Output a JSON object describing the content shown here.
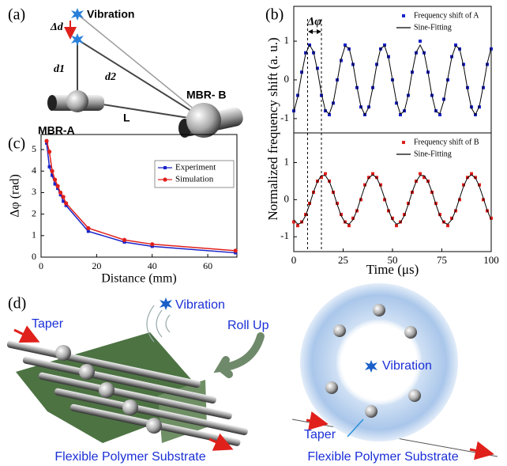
{
  "panel_labels": [
    "(a)",
    "(b)",
    "(c)",
    "(d)"
  ],
  "diagram_a": {
    "vibration": "Vibration",
    "delta_d": "Δd",
    "d1": "d1",
    "d2": "d2",
    "mbr_b": "MBR- B",
    "mbr_a": "MBR-A",
    "l": "L"
  },
  "diagram_d": {
    "left": {
      "taper": "Taper",
      "vibration": "Vibration",
      "roll_up": "Roll Up",
      "substrate": "Flexible Polymer Substrate"
    },
    "right": {
      "vibration": "Vibration",
      "taper": "Taper",
      "substrate": "Flexible Polymer Substrate"
    }
  },
  "chart_data": [
    {
      "type": "scatter",
      "ylabel": "Normalized frequency shift (a. u.)",
      "annotation": "Δφ",
      "x": [
        0,
        2,
        4,
        6,
        8,
        10,
        12,
        14,
        16,
        18,
        20,
        22,
        24,
        26,
        28,
        30,
        32,
        34,
        36,
        38,
        40,
        42,
        44,
        46,
        48,
        50,
        52,
        54,
        56,
        58,
        60,
        62,
        64,
        66,
        68,
        70,
        72,
        74,
        76,
        78,
        80,
        82,
        84,
        86,
        88,
        90,
        92,
        94,
        96,
        98,
        100
      ],
      "xlim": [
        0,
        100
      ],
      "ylim": [
        -1.37,
        1.9
      ],
      "yticks": [
        -1,
        0,
        1
      ],
      "legend": "upper right",
      "series": [
        {
          "name": "Frequency shift of A",
          "color": "#1a23c8",
          "mode": "markers",
          "marker": "square",
          "values": [
            -0.8,
            -0.4,
            0.2,
            0.7,
            0.9,
            0.7,
            0.3,
            -0.4,
            -0.8,
            -0.9,
            -0.6,
            0.0,
            0.5,
            0.9,
            0.8,
            0.4,
            -0.2,
            -0.7,
            -0.9,
            -0.7,
            -0.2,
            0.4,
            0.8,
            0.9,
            0.6,
            0.0,
            -0.6,
            -0.9,
            -0.8,
            -0.4,
            0.2,
            0.7,
            1.0,
            0.7,
            0.2,
            -0.4,
            -0.8,
            -0.9,
            -0.5,
            0.0,
            0.6,
            0.9,
            0.8,
            0.4,
            -0.2,
            -0.7,
            -0.9,
            -0.7,
            -0.2,
            0.4,
            0.8
          ]
        },
        {
          "name": "Sine-Fitting",
          "color": "#000000",
          "mode": "line",
          "values": [
            -0.83,
            -0.44,
            0.15,
            0.67,
            0.9,
            0.73,
            0.24,
            -0.35,
            -0.79,
            -0.88,
            -0.59,
            -0.03,
            0.54,
            0.87,
            0.82,
            0.41,
            -0.18,
            -0.69,
            -0.9,
            -0.71,
            -0.21,
            0.38,
            0.81,
            0.88,
            0.57,
            0.0,
            -0.56,
            -0.88,
            -0.81,
            -0.39,
            0.21,
            0.71,
            0.9,
            0.7,
            0.19,
            -0.41,
            -0.82,
            -0.87,
            -0.54,
            0.03,
            0.58,
            0.88,
            0.8,
            0.36,
            -0.23,
            -0.73,
            -0.9,
            -0.68,
            -0.16,
            0.43,
            0.83
          ]
        }
      ]
    },
    {
      "type": "scatter",
      "xlabel": "Time (μs)",
      "x": [
        0,
        2,
        4,
        6,
        8,
        10,
        12,
        14,
        16,
        18,
        20,
        22,
        24,
        26,
        28,
        30,
        32,
        34,
        36,
        38,
        40,
        42,
        44,
        46,
        48,
        50,
        52,
        54,
        56,
        58,
        60,
        62,
        64,
        66,
        68,
        70,
        72,
        74,
        76,
        78,
        80,
        82,
        84,
        86,
        88,
        90,
        92,
        94,
        96,
        98,
        100
      ],
      "xlim": [
        0,
        100
      ],
      "xticks": [
        0,
        25,
        50,
        75,
        100
      ],
      "ylim": [
        -1.4,
        1.8
      ],
      "yticks": [
        -1,
        0,
        1
      ],
      "legend": "upper right",
      "series": [
        {
          "name": "Frequency shift of B",
          "color": "#e0201b",
          "mode": "markers",
          "marker": "square",
          "values": [
            -0.6,
            -0.7,
            -0.6,
            -0.4,
            -0.1,
            0.2,
            0.5,
            0.6,
            0.7,
            0.5,
            0.2,
            -0.1,
            -0.4,
            -0.6,
            -0.7,
            -0.5,
            -0.3,
            0.0,
            0.4,
            0.6,
            0.7,
            0.6,
            0.4,
            0.0,
            -0.3,
            -0.5,
            -0.7,
            -0.6,
            -0.4,
            -0.1,
            0.2,
            0.5,
            0.7,
            0.6,
            0.5,
            0.2,
            -0.1,
            -0.4,
            -0.6,
            -0.7,
            -0.5,
            -0.3,
            0.0,
            0.4,
            0.6,
            0.7,
            0.6,
            0.4,
            0.0,
            -0.3,
            -0.5
          ]
        },
        {
          "name": "Sine-Fitting",
          "color": "#000000",
          "mode": "line",
          "values": [
            -0.54,
            -0.66,
            -0.62,
            -0.43,
            -0.13,
            0.21,
            0.49,
            0.65,
            0.65,
            0.49,
            0.21,
            -0.13,
            -0.43,
            -0.62,
            -0.66,
            -0.54,
            -0.29,
            0.04,
            0.36,
            0.59,
            0.67,
            0.59,
            0.36,
            0.04,
            -0.29,
            -0.54,
            -0.66,
            -0.62,
            -0.43,
            -0.13,
            0.21,
            0.49,
            0.65,
            0.65,
            0.49,
            0.21,
            -0.13,
            -0.43,
            -0.62,
            -0.66,
            -0.54,
            -0.29,
            0.04,
            0.36,
            0.59,
            0.67,
            0.59,
            0.36,
            0.04,
            -0.29,
            -0.54
          ]
        }
      ]
    },
    {
      "type": "line",
      "xlabel": "Distance (mm)",
      "ylabel": "Δφ (rad)",
      "x": [
        2,
        3,
        4,
        5,
        6,
        7,
        8,
        9,
        17,
        30,
        40,
        70
      ],
      "xlim": [
        0,
        70.5
      ],
      "xticks": [
        0,
        20,
        40,
        60
      ],
      "ylim": [
        0,
        5.7
      ],
      "yticks": [
        0,
        1,
        2,
        3,
        4,
        5
      ],
      "legend": "upper right",
      "legend_frame": true,
      "series": [
        {
          "name": "Experiment",
          "color": "#1a23c8",
          "marker": "square",
          "values": [
            5.3,
            4.2,
            3.8,
            3.4,
            3.2,
            2.9,
            2.6,
            2.4,
            1.2,
            0.7,
            0.5,
            0.2
          ]
        },
        {
          "name": "Simulation",
          "color": "#e0201b",
          "marker": "circle",
          "values": [
            5.4,
            4.9,
            4.0,
            3.6,
            3.3,
            3.0,
            2.8,
            2.5,
            1.35,
            0.8,
            0.6,
            0.3
          ]
        }
      ]
    }
  ]
}
